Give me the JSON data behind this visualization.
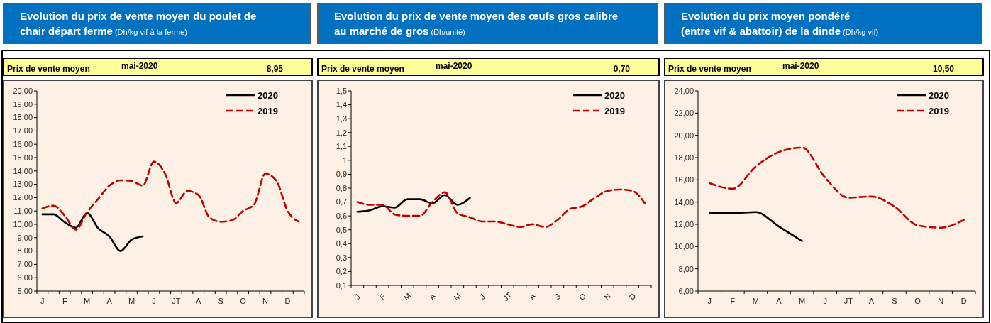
{
  "chart_data": [
    {
      "type": "line",
      "title": "Evolution du prix de vente moyen du  poulet de\nchair départ ferme",
      "subtitle": "(Dh/kg vif à la ferme)",
      "annotations": [
        "Prix de vente moyen",
        "mai-2020",
        "8,95"
      ],
      "categories": [
        "J",
        null,
        "F",
        null,
        "M",
        null,
        "A",
        null,
        "M",
        null,
        "J",
        null,
        "JT",
        null,
        "A",
        null,
        "S",
        null,
        "O",
        null,
        "N",
        null,
        "D",
        null
      ],
      "ylim": [
        5,
        20
      ],
      "yticks": [
        {
          "value": 5,
          "label": "5,00"
        },
        {
          "value": 6,
          "label": "6,00"
        },
        {
          "value": 7,
          "label": "7,00"
        },
        {
          "value": 8,
          "label": "8,00"
        },
        {
          "value": 9,
          "label": "9,00"
        },
        {
          "value": 10,
          "label": "10,00"
        },
        {
          "value": 11,
          "label": "11,00"
        },
        {
          "value": 12,
          "label": "12,00"
        },
        {
          "value": 13,
          "label": "13,00"
        },
        {
          "value": 14,
          "label": "14,00"
        },
        {
          "value": 15,
          "label": "15,00"
        },
        {
          "value": 16,
          "label": "16,00"
        },
        {
          "value": 17,
          "label": "17,00"
        },
        {
          "value": 18,
          "label": "18,00"
        },
        {
          "value": 19,
          "label": "19,00"
        },
        {
          "value": 20,
          "label": "20,00"
        }
      ],
      "legend": "top right",
      "grid": false,
      "series": [
        {
          "name": "2020",
          "color": "#000000",
          "line_style": "solid",
          "values": [
            10.75,
            10.75,
            10.15,
            9.75,
            10.85,
            9.7,
            9.1,
            8.0,
            8.85,
            9.1,
            null,
            null,
            null,
            null,
            null,
            null,
            null,
            null,
            null,
            null,
            null,
            null,
            null,
            null
          ]
        },
        {
          "name": "2019",
          "color": "#c00000",
          "line_style": "dashed",
          "values": [
            11.2,
            11.4,
            10.65,
            9.6,
            10.9,
            11.9,
            12.9,
            13.3,
            13.25,
            12.9,
            14.7,
            13.8,
            11.6,
            12.5,
            12.2,
            10.5,
            10.2,
            10.3,
            11.0,
            11.5,
            13.8,
            13.25,
            11.0,
            10.2
          ]
        }
      ]
    },
    {
      "type": "line",
      "title": "Evolution du prix de vente moyen des œufs gros calibre\nau marché de gros",
      "subtitle": "(Dh/unité)",
      "annotations": [
        "Prix de vente moyen",
        "mai-2020",
        "0,70"
      ],
      "categories": [
        "J",
        null,
        "F",
        null,
        "M",
        null,
        "A",
        null,
        "M",
        null,
        "J",
        null,
        "JT",
        null,
        "A",
        null,
        "S",
        null,
        "O",
        null,
        "N",
        null,
        "D",
        null
      ],
      "ylim": [
        0.1,
        1.5
      ],
      "yticks": [
        {
          "value": 0.1,
          "label": "0,1"
        },
        {
          "value": 0.2,
          "label": "0,2"
        },
        {
          "value": 0.3,
          "label": "0,3"
        },
        {
          "value": 0.4,
          "label": "0,4"
        },
        {
          "value": 0.5,
          "label": "0,5"
        },
        {
          "value": 0.6,
          "label": "0,6"
        },
        {
          "value": 0.7,
          "label": "0,7"
        },
        {
          "value": 0.8,
          "label": "0,8"
        },
        {
          "value": 0.9,
          "label": "0,9"
        },
        1,
        {
          "value": 1.1,
          "label": "1,1"
        },
        {
          "value": 1.2,
          "label": "1,2"
        },
        {
          "value": 1.3,
          "label": "1,3"
        },
        {
          "value": 1.4,
          "label": "1,4"
        },
        {
          "value": 1.5,
          "label": "1,5"
        }
      ],
      "legend": "top right",
      "grid": false,
      "series": [
        {
          "name": "2020",
          "color": "#000000",
          "line_style": "solid",
          "values": [
            0.63,
            0.64,
            0.67,
            0.66,
            0.72,
            0.72,
            0.69,
            0.75,
            0.68,
            0.73,
            null,
            null,
            null,
            null,
            null,
            null,
            null,
            null,
            null,
            null,
            null,
            null,
            null,
            null
          ]
        },
        {
          "name": "2019",
          "color": "#c00000",
          "line_style": "dashed",
          "values": [
            0.7,
            0.68,
            0.68,
            0.61,
            0.6,
            0.6,
            0.7,
            0.77,
            0.62,
            0.59,
            0.56,
            0.56,
            0.54,
            0.52,
            0.54,
            0.52,
            0.57,
            0.65,
            0.67,
            0.73,
            0.78,
            0.79,
            0.78,
            0.69
          ]
        }
      ]
    },
    {
      "type": "line",
      "title": "Evolution du prix moyen pondéré\n(entre vif & abattoir) de la dinde",
      "subtitle": "(Dh/kg vif)",
      "annotations": [
        "Prix de vente moyen",
        "mai-2020",
        "10,50"
      ],
      "categories": [
        "J",
        "F",
        "M",
        "A",
        "M",
        "J",
        "JT",
        "A",
        "S",
        "O",
        "N",
        "D"
      ],
      "ylim": [
        6,
        24
      ],
      "yticks": [
        {
          "value": 6,
          "label": "6,00"
        },
        {
          "value": 8,
          "label": "8,00"
        },
        {
          "value": 10,
          "label": "10,00"
        },
        {
          "value": 12,
          "label": "12,00"
        },
        {
          "value": 14,
          "label": "14,00"
        },
        {
          "value": 16,
          "label": "16,00"
        },
        {
          "value": 18,
          "label": "18,00"
        },
        {
          "value": 20,
          "label": "20,00"
        },
        {
          "value": 22,
          "label": "22,00"
        },
        {
          "value": 24,
          "label": "24,00"
        }
      ],
      "legend": "top right",
      "grid": false,
      "series": [
        {
          "name": "2020",
          "color": "#000000",
          "line_style": "solid",
          "values": [
            13.0,
            13.0,
            13.1,
            11.8,
            10.5,
            null,
            null,
            null,
            null,
            null,
            null,
            null
          ]
        },
        {
          "name": "2019",
          "color": "#c00000",
          "line_style": "dashed",
          "values": [
            15.7,
            15.2,
            17.2,
            18.5,
            18.9,
            16.2,
            14.4,
            14.5,
            13.6,
            11.9,
            11.7,
            12.4
          ]
        }
      ]
    }
  ]
}
